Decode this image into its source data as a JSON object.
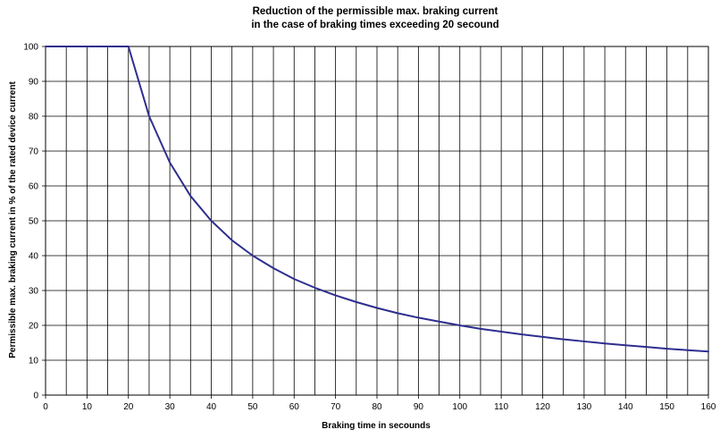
{
  "chart_data": {
    "type": "line",
    "title_lines": [
      "Reduction of the permissible max. braking current",
      "in the case of braking times exceeding 20 secound"
    ],
    "xlabel": "Braking time in secounds",
    "ylabel": "Permissible max. braking current in % of the rated device current",
    "xlim": [
      0,
      160
    ],
    "ylim": [
      0,
      100
    ],
    "x_ticks": [
      0,
      10,
      20,
      30,
      40,
      50,
      60,
      70,
      80,
      90,
      100,
      110,
      120,
      130,
      140,
      150,
      160
    ],
    "y_ticks": [
      0,
      10,
      20,
      30,
      40,
      50,
      60,
      70,
      80,
      90,
      100
    ],
    "x_gridlines_every": 5,
    "y_gridlines_every": 10,
    "grid": true,
    "line_color": "#2e2e8f",
    "series": [
      {
        "x": [
          0,
          5,
          10,
          15,
          20,
          25,
          30,
          35,
          40,
          45,
          50,
          55,
          60,
          65,
          70,
          75,
          80,
          85,
          90,
          95,
          100,
          105,
          110,
          115,
          120,
          125,
          130,
          135,
          140,
          145,
          150,
          155,
          160
        ],
        "values": [
          100,
          100,
          100,
          100,
          100,
          80,
          66.7,
          57.1,
          50,
          44.4,
          40,
          36.4,
          33.3,
          30.8,
          28.6,
          26.7,
          25,
          23.5,
          22.2,
          21.1,
          20,
          19,
          18.2,
          17.4,
          16.7,
          16,
          15.4,
          14.8,
          14.3,
          13.8,
          13.3,
          12.9,
          12.5
        ]
      }
    ]
  }
}
